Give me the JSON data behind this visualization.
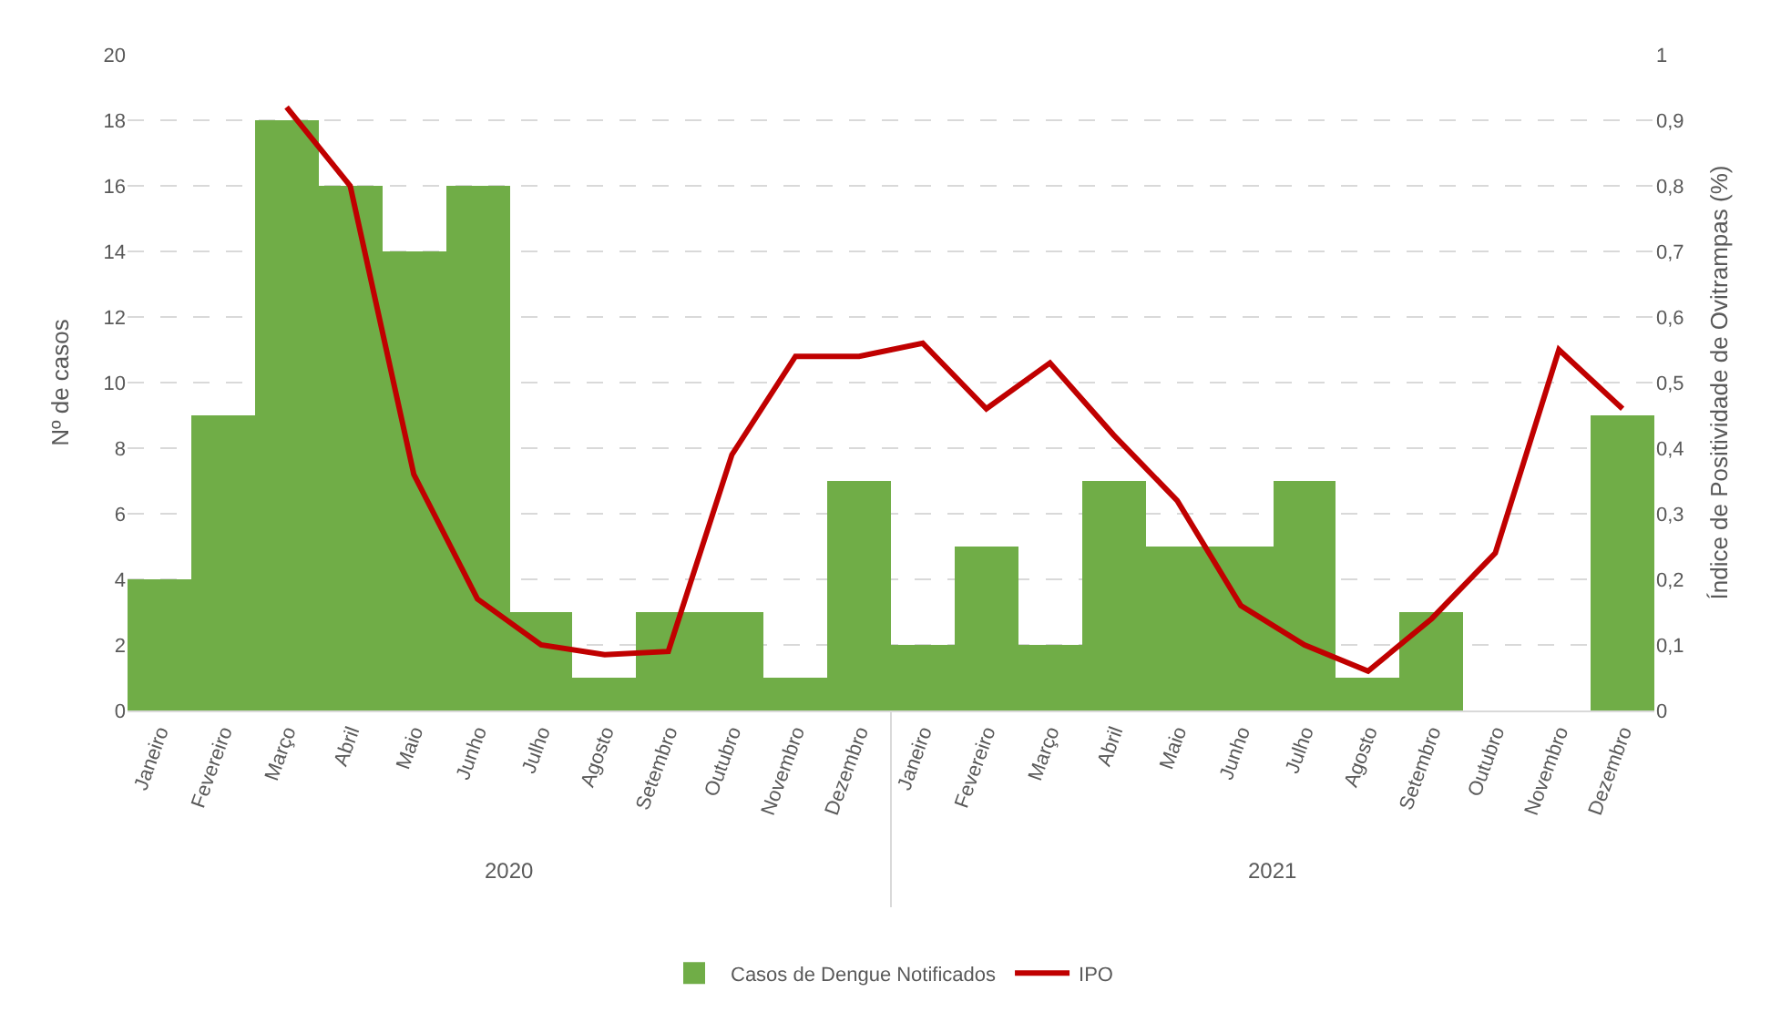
{
  "chart_data": {
    "type": "bar",
    "categories": [
      "Janeiro",
      "Fevereiro",
      "Março",
      "Abril",
      "Maio",
      "Junho",
      "Julho",
      "Agosto",
      "Setembro",
      "Outubro",
      "Novembro",
      "Dezembro",
      "Janeiro",
      "Fevereiro",
      "Março",
      "Abril",
      "Maio",
      "Junho",
      "Julho",
      "Agosto",
      "Setembro",
      "Outubro",
      "Novembro",
      "Dezembro"
    ],
    "series": [
      {
        "name": "Casos de Dengue Notificados",
        "color": "#70ad47",
        "values": [
          4,
          9,
          18,
          16,
          14,
          16,
          3,
          1,
          3,
          3,
          1,
          7,
          2,
          5,
          2,
          7,
          5,
          5,
          7,
          1,
          3,
          0,
          0,
          9
        ]
      },
      {
        "name": "IPO",
        "color": "#c00000",
        "type": "line",
        "axis": "y2",
        "values": [
          null,
          null,
          0.92,
          0.8,
          0.36,
          0.17,
          0.1,
          0.085,
          0.09,
          0.39,
          0.54,
          0.54,
          0.56,
          0.46,
          0.53,
          0.42,
          0.32,
          0.16,
          0.1,
          0.06,
          0.14,
          0.24,
          0.55,
          0.46
        ]
      }
    ],
    "ylabel": "Nº de casos",
    "y2label": "Índice de Positividade de Ovitrampas (%)",
    "ylim": [
      0,
      20
    ],
    "yticks": [
      0,
      2,
      4,
      6,
      8,
      10,
      12,
      14,
      16,
      18,
      20
    ],
    "y2lim": [
      0,
      1
    ],
    "y2ticks": [
      0,
      {
        "value": 0.1,
        "label": "0,1"
      },
      {
        "value": 0.2,
        "label": "0,2"
      },
      {
        "value": 0.3,
        "label": "0,3"
      },
      {
        "value": 0.4,
        "label": "0,4"
      },
      {
        "value": 0.5,
        "label": "0,5"
      },
      {
        "value": 0.6,
        "label": "0,6"
      },
      {
        "value": 0.7,
        "label": "0,7"
      },
      {
        "value": 0.8,
        "label": "0,8"
      },
      {
        "value": 0.9,
        "label": "0,9"
      },
      1
    ],
    "annotations": [
      "2020",
      "2021"
    ],
    "grid": "y",
    "legend": "bottom"
  }
}
